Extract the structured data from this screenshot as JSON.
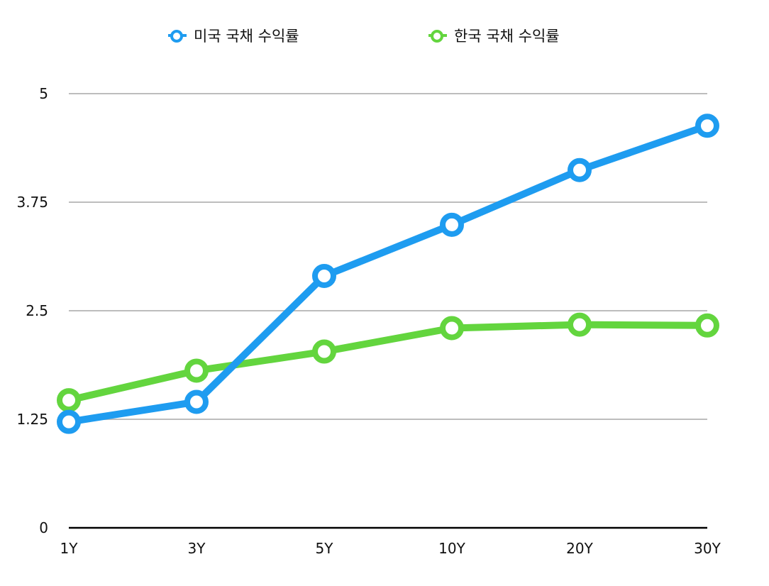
{
  "chart_data": {
    "type": "line",
    "title": "",
    "xlabel": "",
    "ylabel": "",
    "categories": [
      "1Y",
      "3Y",
      "5Y",
      "10Y",
      "20Y",
      "30Y"
    ],
    "ylim": [
      0,
      5
    ],
    "yticks": [
      0,
      1.25,
      2.5,
      3.75,
      5
    ],
    "ytick_labels": [
      "0",
      "1.25",
      "2.5",
      "3.75",
      "5"
    ],
    "grid": true,
    "legend_position": "top",
    "series": [
      {
        "name": "미국 국채 수익률",
        "color": "#1E9CF0",
        "values": [
          1.22,
          1.45,
          2.9,
          3.49,
          4.12,
          4.63
        ]
      },
      {
        "name": "한국 국채 수익률",
        "color": "#63D53E",
        "values": [
          1.47,
          1.81,
          2.03,
          2.3,
          2.34,
          2.33
        ]
      }
    ]
  }
}
